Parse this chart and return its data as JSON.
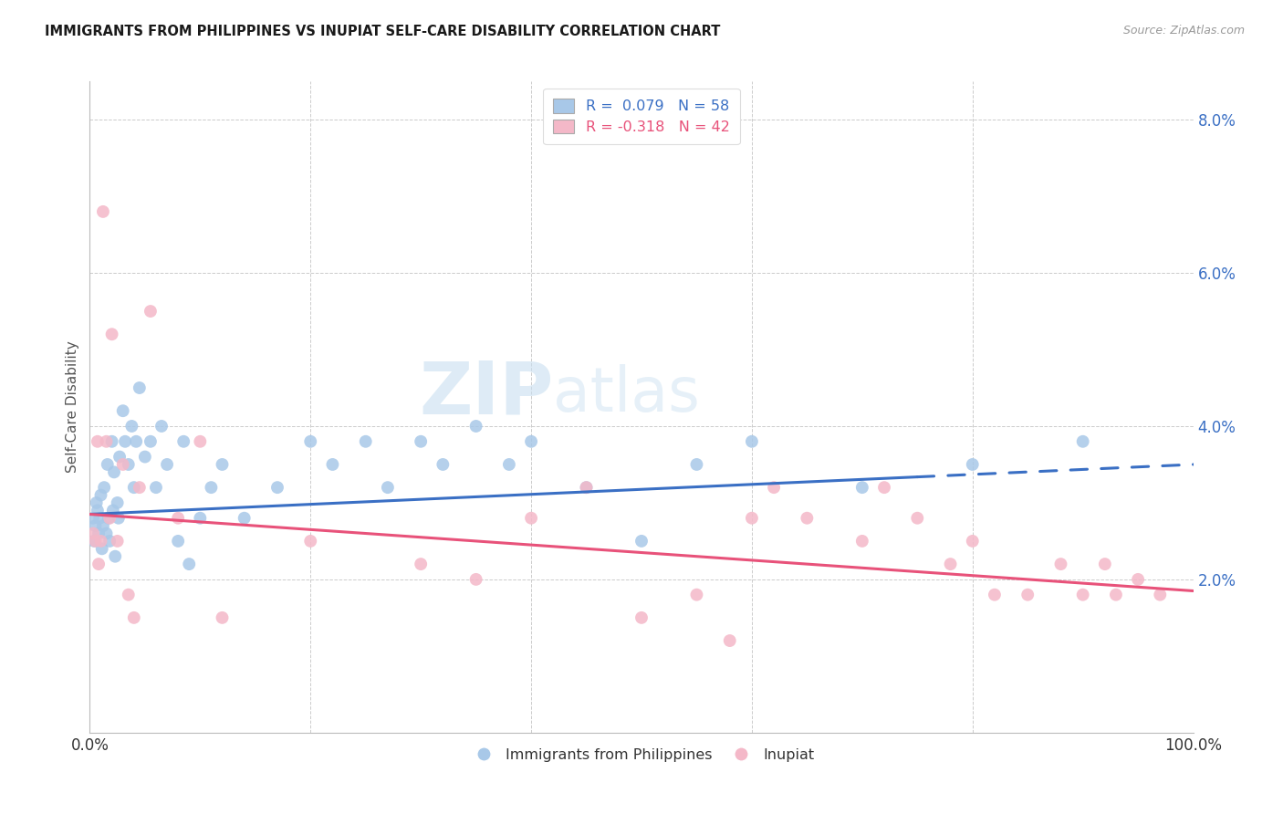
{
  "title": "IMMIGRANTS FROM PHILIPPINES VS INUPIAT SELF-CARE DISABILITY CORRELATION CHART",
  "source": "Source: ZipAtlas.com",
  "ylabel": "Self-Care Disability",
  "legend_label1": "Immigrants from Philippines",
  "legend_label2": "Inupiat",
  "r1": 0.079,
  "n1": 58,
  "r2": -0.318,
  "n2": 42,
  "blue_scatter_color": "#a8c8e8",
  "pink_scatter_color": "#f4b8c8",
  "blue_line_color": "#3a6fc4",
  "pink_line_color": "#e8527a",
  "watermark_color": "#d8edf8",
  "blue_x": [
    0.3,
    0.4,
    0.5,
    0.6,
    0.7,
    0.8,
    0.9,
    1.0,
    1.1,
    1.2,
    1.3,
    1.5,
    1.6,
    1.7,
    1.8,
    2.0,
    2.1,
    2.2,
    2.3,
    2.5,
    2.6,
    2.7,
    3.0,
    3.2,
    3.5,
    3.8,
    4.0,
    4.2,
    4.5,
    5.0,
    5.5,
    6.0,
    6.5,
    7.0,
    8.0,
    8.5,
    9.0,
    10.0,
    11.0,
    12.0,
    14.0,
    17.0,
    20.0,
    22.0,
    25.0,
    27.0,
    30.0,
    32.0,
    35.0,
    38.0,
    40.0,
    45.0,
    50.0,
    55.0,
    60.0,
    70.0,
    80.0,
    90.0
  ],
  "blue_y": [
    2.8,
    2.5,
    2.7,
    3.0,
    2.9,
    2.6,
    2.8,
    3.1,
    2.4,
    2.7,
    3.2,
    2.6,
    3.5,
    2.8,
    2.5,
    3.8,
    2.9,
    3.4,
    2.3,
    3.0,
    2.8,
    3.6,
    4.2,
    3.8,
    3.5,
    4.0,
    3.2,
    3.8,
    4.5,
    3.6,
    3.8,
    3.2,
    4.0,
    3.5,
    2.5,
    3.8,
    2.2,
    2.8,
    3.2,
    3.5,
    2.8,
    3.2,
    3.8,
    3.5,
    3.8,
    3.2,
    3.8,
    3.5,
    4.0,
    3.5,
    3.8,
    3.2,
    2.5,
    3.5,
    3.8,
    3.2,
    3.5,
    3.8
  ],
  "pink_x": [
    0.3,
    0.5,
    0.7,
    0.8,
    1.0,
    1.2,
    1.5,
    1.8,
    2.0,
    2.5,
    3.0,
    3.5,
    4.0,
    4.5,
    5.5,
    8.0,
    10.0,
    12.0,
    20.0,
    30.0,
    35.0,
    40.0,
    45.0,
    50.0,
    55.0,
    58.0,
    60.0,
    62.0,
    65.0,
    70.0,
    72.0,
    75.0,
    78.0,
    80.0,
    82.0,
    85.0,
    88.0,
    90.0,
    92.0,
    93.0,
    95.0,
    97.0
  ],
  "pink_y": [
    2.6,
    2.5,
    3.8,
    2.2,
    2.5,
    6.8,
    3.8,
    2.8,
    5.2,
    2.5,
    3.5,
    1.8,
    1.5,
    3.2,
    5.5,
    2.8,
    3.8,
    1.5,
    2.5,
    2.2,
    2.0,
    2.8,
    3.2,
    1.5,
    1.8,
    1.2,
    2.8,
    3.2,
    2.8,
    2.5,
    3.2,
    2.8,
    2.2,
    2.5,
    1.8,
    1.8,
    2.2,
    1.8,
    2.2,
    1.8,
    2.0,
    1.8
  ],
  "xlim": [
    0,
    100
  ],
  "ylim": [
    0,
    8.5
  ],
  "ytick_positions": [
    2,
    4,
    6,
    8
  ],
  "ytick_labels": [
    "2.0%",
    "4.0%",
    "6.0%",
    "8.0%"
  ],
  "xtick_positions": [
    0,
    100
  ],
  "xtick_labels": [
    "0.0%",
    "100.0%"
  ],
  "blue_line_start_x": 0,
  "blue_line_end_x": 100,
  "blue_line_start_y": 2.85,
  "blue_line_end_y": 3.5,
  "blue_solid_end_x": 75,
  "pink_line_start_x": 0,
  "pink_line_end_x": 100,
  "pink_line_start_y": 2.85,
  "pink_line_end_y": 1.85
}
